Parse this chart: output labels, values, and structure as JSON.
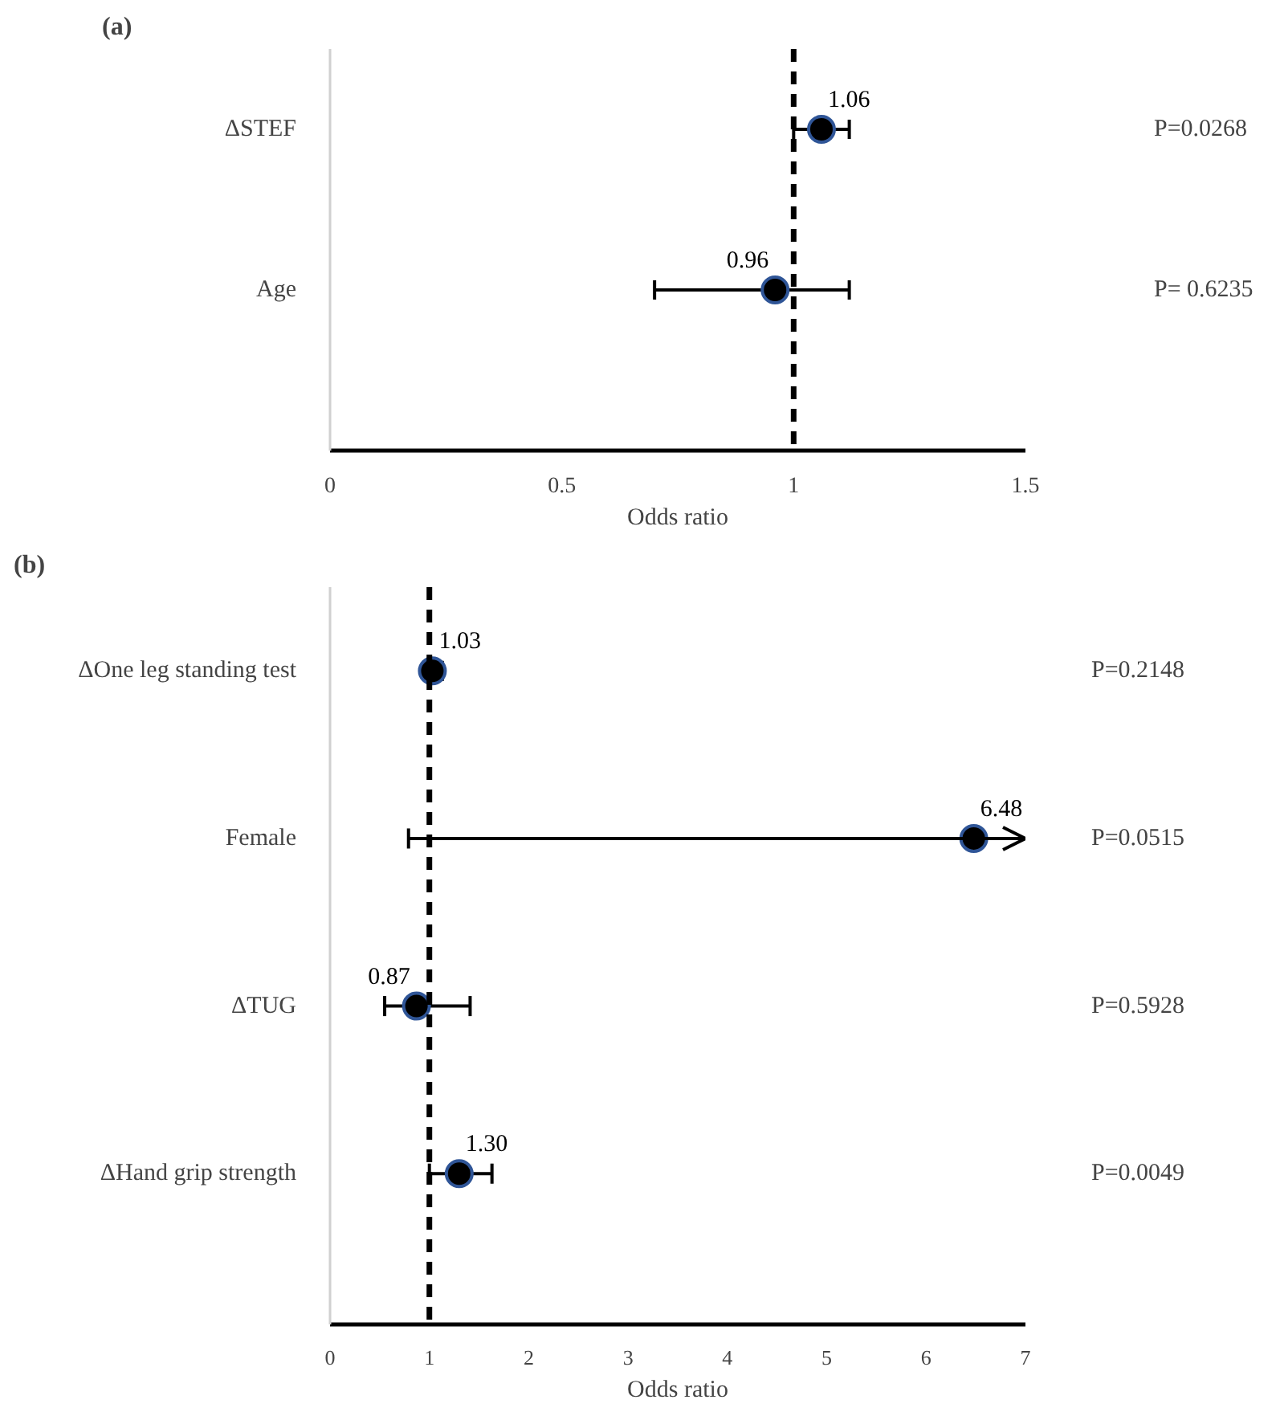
{
  "chart_data": [
    {
      "type": "scatter",
      "orientation": "horizontal",
      "title": "(a)",
      "xlabel": "Odds ratio",
      "categories": [
        "ΔSTEF",
        "Age"
      ],
      "values": [
        1.06,
        0.96
      ],
      "errors": [
        [
          1.0,
          1.12
        ],
        [
          0.7,
          1.12
        ]
      ],
      "color": "#000000",
      "marker": "circle",
      "data_labels": true,
      "grid": false,
      "xlim": [
        0,
        1.5
      ],
      "xticks": [
        0,
        0.5,
        1,
        1.5
      ],
      "ref_lines": [
        {
          "axis": "x",
          "value": 1,
          "line_style": "dashed",
          "color": "#000000"
        }
      ],
      "annotations": [
        "P=0.0268",
        "P= 0.6235"
      ]
    },
    {
      "type": "scatter",
      "orientation": "horizontal",
      "title": "(b)",
      "xlabel": "Odds ratio",
      "categories": [
        "ΔOne leg standing test",
        "Female",
        "ΔTUG",
        "ΔHand grip strength"
      ],
      "values": [
        1.03,
        6.48,
        0.87,
        1.3
      ],
      "errors": [
        [
          1.03,
          1.13
        ],
        [
          0.79,
          7
        ],
        [
          0.55,
          1.41
        ],
        [
          1.0,
          1.63
        ]
      ],
      "value_labels": [
        "1.03",
        "6.48",
        "0.87",
        "1.30"
      ],
      "color": "#000000",
      "marker": "circle",
      "data_labels": true,
      "grid": false,
      "xlim": [
        0,
        7
      ],
      "xticks": [
        0,
        1,
        2,
        3,
        4,
        5,
        6,
        7
      ],
      "ref_lines": [
        {
          "axis": "x",
          "value": 1,
          "line_style": "dashed",
          "color": "#000000"
        }
      ],
      "annotations": [
        "P=0.2148",
        "P=0.0515",
        "P=0.5928",
        "P=0.0049"
      ]
    }
  ]
}
